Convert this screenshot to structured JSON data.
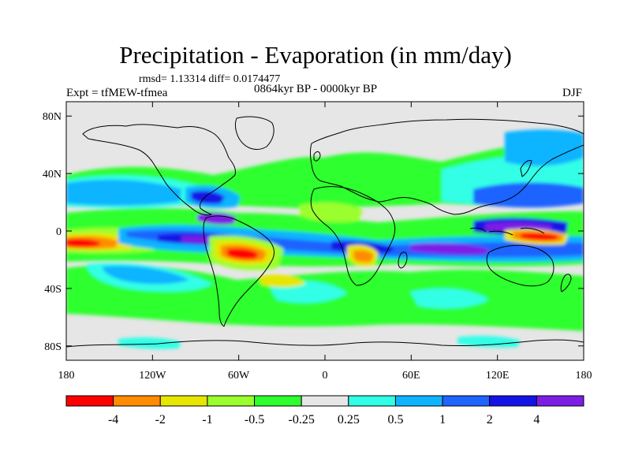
{
  "title": "Precipitation - Evaporation (in mm/day)",
  "stats": "rmsd= 1.13314 diff= 0.0174477",
  "experiment": "Expt = tfMEW-tfmea",
  "period": "0864kyr BP - 0000kyr BP",
  "season": "DJF",
  "map": {
    "background": "#e6e6e6",
    "lon_range": [
      -180,
      180
    ],
    "lat_range": [
      -90,
      90
    ],
    "lat_ticks": [
      {
        "value": 80,
        "label": "80N"
      },
      {
        "value": 40,
        "label": "40N"
      },
      {
        "value": 0,
        "label": "0"
      },
      {
        "value": -40,
        "label": "40S"
      },
      {
        "value": -80,
        "label": "80S"
      }
    ],
    "lon_ticks": [
      {
        "value": -180,
        "label": "180"
      },
      {
        "value": -120,
        "label": "120W"
      },
      {
        "value": -60,
        "label": "60W"
      },
      {
        "value": 0,
        "label": "0"
      },
      {
        "value": 60,
        "label": "60E"
      },
      {
        "value": 120,
        "label": "120E"
      },
      {
        "value": 180,
        "label": "180"
      }
    ]
  },
  "colorbar": {
    "colors": [
      "#ff0000",
      "#ff8c00",
      "#e6e600",
      "#9bff2d",
      "#2dff2d",
      "#e6e6e6",
      "#32ffe6",
      "#0fb4ff",
      "#1e64ff",
      "#1414e6",
      "#7d1ee6"
    ],
    "labels": [
      "-4",
      "-2",
      "-1",
      "-0.5",
      "-0.25",
      "0.25",
      "0.5",
      "1",
      "2",
      "4"
    ]
  }
}
